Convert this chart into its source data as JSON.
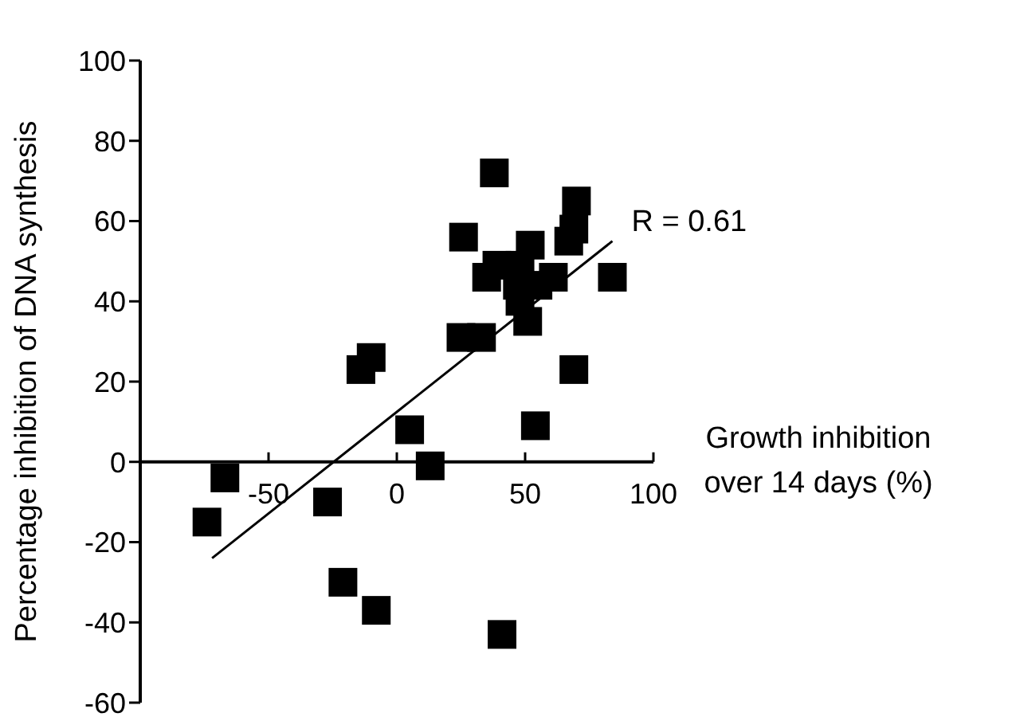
{
  "chart_data": {
    "type": "scatter",
    "ylabel": "Percentage inhibition of DNA synthesis",
    "xlabel": "Growth inhibition over 14 days (%)",
    "annotations": [
      "R = 0.61"
    ],
    "marker": "square",
    "grid": false,
    "xlim": [
      -100,
      100
    ],
    "xticks": [
      -50,
      0,
      50,
      100
    ],
    "ylim": [
      -60,
      100
    ],
    "yticks": [
      -60,
      -40,
      -20,
      0,
      20,
      40,
      60,
      80,
      100
    ],
    "series": [
      {
        "type": "scatter",
        "color": "#000000",
        "x": [
          38,
          70,
          69,
          67,
          26,
          84,
          52,
          35,
          39,
          48,
          61,
          55,
          47,
          48,
          51,
          25,
          33,
          -10,
          -14,
          69,
          5,
          54,
          13,
          -67,
          -74,
          -27,
          -21,
          -8,
          41
        ],
        "values": [
          72,
          65,
          58,
          55,
          56,
          46,
          54,
          46,
          49,
          49,
          46,
          44,
          44,
          40,
          35,
          31,
          31,
          26,
          23,
          23,
          8,
          9,
          -1,
          -4,
          -15,
          -10,
          -30,
          -37,
          -43
        ]
      },
      {
        "type": "line",
        "color": "#000000",
        "marker": "none",
        "x": [
          -72,
          84
        ],
        "values": [
          -24,
          55
        ]
      }
    ]
  }
}
